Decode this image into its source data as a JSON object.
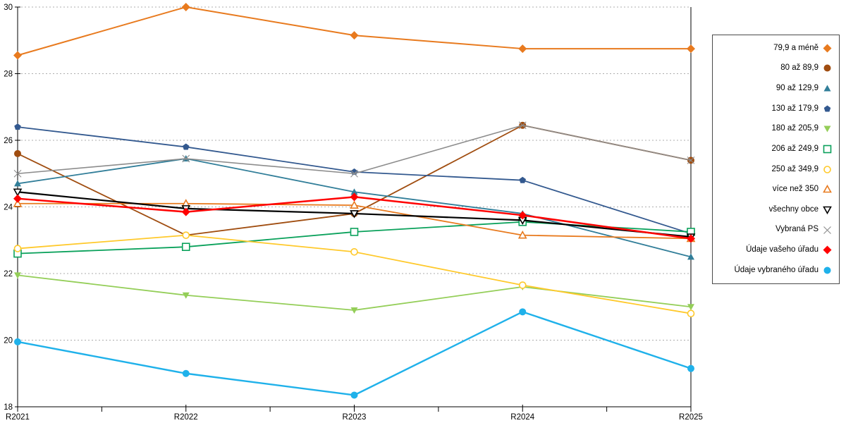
{
  "chart_data": {
    "type": "line",
    "title": "",
    "xlabel": "",
    "ylabel": "",
    "ylim": [
      18,
      30
    ],
    "y_ticks": [
      18,
      20,
      22,
      24,
      26,
      28,
      30
    ],
    "grid": "dashed-horizontal",
    "legend_position": "right",
    "categories": [
      "R2021",
      "R2022",
      "R2023",
      "R2024",
      "R2025"
    ],
    "series": [
      {
        "name": "79,9 a méně",
        "marker": "diamond-filled",
        "color": "#E87A1E",
        "width": 2.0,
        "values": [
          28.55,
          30.0,
          29.15,
          28.75,
          28.75
        ]
      },
      {
        "name": "80 až 89,9",
        "marker": "circle-filled",
        "color": "#A04D10",
        "width": 1.8,
        "values": [
          25.6,
          23.15,
          23.8,
          26.45,
          25.4
        ]
      },
      {
        "name": "90 až 129,9",
        "marker": "triangle-up-filled",
        "color": "#317E99",
        "width": 1.8,
        "values": [
          24.7,
          25.45,
          24.45,
          23.8,
          22.5
        ]
      },
      {
        "name": "130 až 179,9",
        "marker": "pentagon-filled",
        "color": "#33598F",
        "width": 1.8,
        "values": [
          26.4,
          25.8,
          25.05,
          24.8,
          23.2
        ]
      },
      {
        "name": "180 až 205,9",
        "marker": "triangle-down-filled",
        "color": "#94CE58",
        "width": 1.8,
        "values": [
          21.95,
          21.35,
          20.9,
          21.6,
          21.0
        ]
      },
      {
        "name": "206 až 249,9",
        "marker": "square-open",
        "color": "#0AA15B",
        "width": 1.8,
        "values": [
          22.6,
          22.8,
          23.25,
          23.55,
          23.25
        ]
      },
      {
        "name": "250 až 349,9",
        "marker": "circle-open",
        "color": "#FFC92B",
        "width": 1.8,
        "values": [
          22.75,
          23.15,
          22.65,
          21.65,
          20.8
        ]
      },
      {
        "name": "více než 350",
        "marker": "triangle-up-open",
        "color": "#E87A1E",
        "width": 1.8,
        "values": [
          24.1,
          24.1,
          24.05,
          23.15,
          23.05
        ]
      },
      {
        "name": "všechny obce",
        "marker": "triangle-down-open",
        "color": "#000000",
        "width": 2.2,
        "values": [
          24.45,
          23.95,
          23.8,
          23.6,
          23.1
        ]
      },
      {
        "name": "Vybraná PS",
        "marker": "x",
        "color": "#8C8C8C",
        "width": 1.6,
        "values": [
          25.0,
          25.45,
          25.0,
          26.45,
          25.4
        ]
      },
      {
        "name": "Údaje vašeho úřadu",
        "marker": "diamond-filled",
        "color": "#FF0000",
        "width": 2.5,
        "values": [
          24.25,
          23.85,
          24.3,
          23.75,
          23.05
        ]
      },
      {
        "name": "Údaje vybraného úřadu",
        "marker": "circle-filled",
        "color": "#1FB1EA",
        "width": 2.4,
        "values": [
          19.95,
          19.0,
          18.35,
          20.85,
          19.15
        ]
      }
    ],
    "axis_color": "#000000",
    "grid_color": "#ADADAD",
    "tick_label_color": "#000000"
  }
}
